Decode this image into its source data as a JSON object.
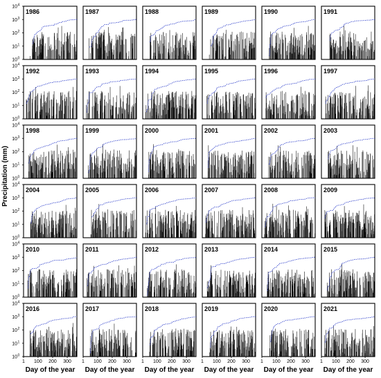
{
  "figure": {
    "ylabel": "Precipitation (mm)",
    "xlabel": "Day of the year"
  },
  "chart_data": {
    "type": "bar",
    "layout": "small multiples, 6 rows x 6 columns",
    "panels": [
      "1986",
      "1987",
      "1988",
      "1989",
      "1990",
      "1991",
      "1992",
      "1993",
      "1994",
      "1995",
      "1996",
      "1997",
      "1998",
      "1999",
      "2000",
      "2001",
      "2002",
      "2003",
      "2004",
      "2005",
      "2006",
      "2007",
      "2008",
      "2009",
      "2010",
      "2011",
      "2012",
      "2013",
      "2014",
      "2015",
      "2016",
      "2017",
      "2018",
      "2019",
      "2020",
      "2021"
    ],
    "x_axis": {
      "range": [
        1,
        366
      ],
      "ticks": [
        1,
        100,
        200,
        300
      ],
      "tick_labels": [
        "1",
        "100",
        "200",
        "300"
      ]
    },
    "y_axis": {
      "scale": "log",
      "range": [
        1,
        10000
      ],
      "ticks": [
        1,
        10,
        100,
        1000,
        10000
      ],
      "tick_labels": [
        "10^0",
        "10^1",
        "10^2",
        "10^3",
        "10^4"
      ]
    },
    "series": [
      {
        "type": "bar",
        "description": "daily precipitation",
        "color": "#000000"
      },
      {
        "type": "line",
        "description": "cumulative precipitation",
        "style": "dotted",
        "color": "#3344cc",
        "approx_annual_total": 1000
      }
    ]
  }
}
